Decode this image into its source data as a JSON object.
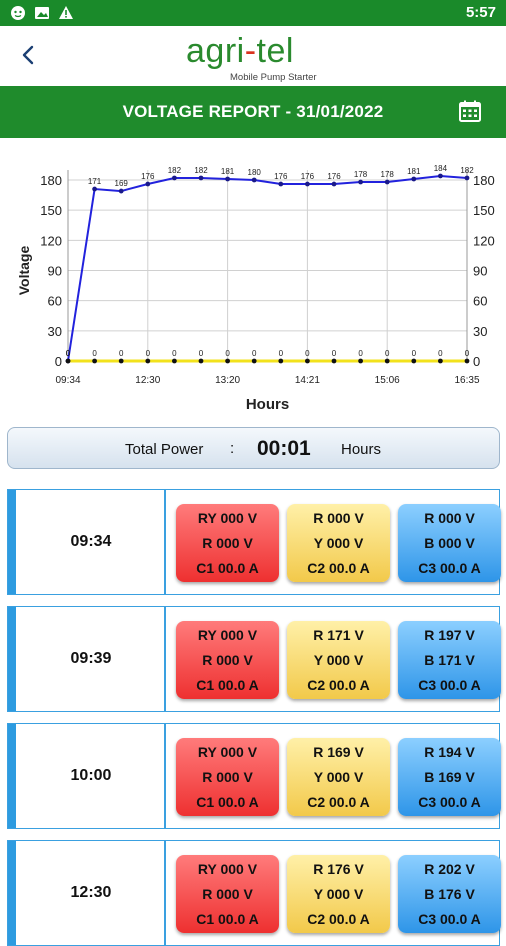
{
  "status_bar": {
    "time": "5:57",
    "icons": [
      "face-icon",
      "image-icon",
      "warning-icon"
    ]
  },
  "header": {
    "brand_prefix": "agri",
    "brand_dash": "-",
    "brand_suffix": "tel",
    "tagline": "Mobile Pump Starter"
  },
  "title_bar": {
    "title": "VOLTAGE REPORT - 31/01/2022",
    "calendar_icon": "calendar-icon"
  },
  "colors": {
    "green": "#1f8b2c",
    "line_blue": "#2222dd",
    "line_yellow": "#f2e21c",
    "border_blue": "#3aa0e0"
  },
  "chart_data": {
    "type": "line",
    "xlabel": "Hours",
    "ylabel": "Voltage",
    "ylim": [
      0,
      180
    ],
    "yticks": [
      0,
      30,
      60,
      90,
      120,
      150,
      180
    ],
    "x_tick_labels": [
      "09:34",
      "12:30",
      "13:20",
      "14:21",
      "15:06",
      "16:35"
    ],
    "grid": true,
    "series": [
      {
        "values": [
          0,
          171,
          169,
          176,
          182,
          182,
          181,
          180,
          176,
          176,
          176,
          178,
          178,
          181,
          184,
          182
        ]
      },
      {
        "values": [
          0,
          0,
          0,
          0,
          0,
          0,
          0,
          0,
          0,
          0,
          0,
          0,
          0,
          0,
          0,
          0
        ]
      }
    ]
  },
  "total_power": {
    "label": "Total Power",
    "colon": ":",
    "value": "00:01",
    "unit": "Hours"
  },
  "records": [
    {
      "time": "09:34",
      "red": [
        "RY 000 V",
        "R 000 V",
        "C1 00.0 A"
      ],
      "yellow": [
        "R 000 V",
        "Y 000 V",
        "C2 00.0 A"
      ],
      "blue": [
        "R 000 V",
        "B 000 V",
        "C3 00.0 A"
      ]
    },
    {
      "time": "09:39",
      "red": [
        "RY 000 V",
        "R 000 V",
        "C1 00.0 A"
      ],
      "yellow": [
        "R 171 V",
        "Y 000 V",
        "C2 00.0 A"
      ],
      "blue": [
        "R 197 V",
        "B 171 V",
        "C3 00.0 A"
      ]
    },
    {
      "time": "10:00",
      "red": [
        "RY 000 V",
        "R 000 V",
        "C1 00.0 A"
      ],
      "yellow": [
        "R 169 V",
        "Y 000 V",
        "C2 00.0 A"
      ],
      "blue": [
        "R 194 V",
        "B 169 V",
        "C3 00.0 A"
      ]
    },
    {
      "time": "12:30",
      "red": [
        "RY 000 V",
        "R 000 V",
        "C1 00.0 A"
      ],
      "yellow": [
        "R 176 V",
        "Y 000 V",
        "C2 00.0 A"
      ],
      "blue": [
        "R 202 V",
        "B 176 V",
        "C3 00.0 A"
      ]
    }
  ]
}
